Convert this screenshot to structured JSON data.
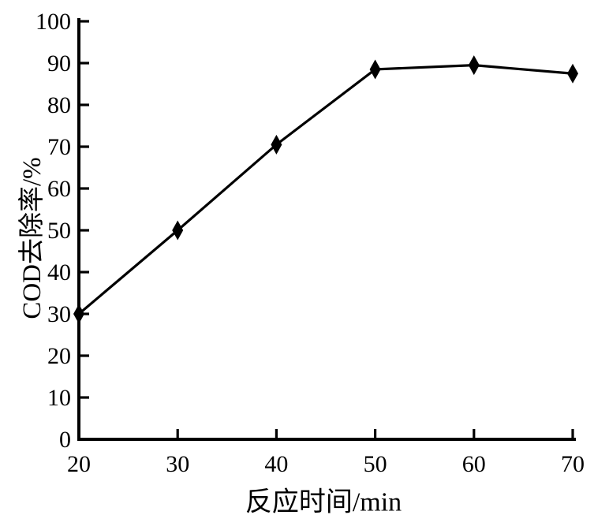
{
  "figure": {
    "background": "#ffffff",
    "axis_color": "#000000"
  },
  "chart_data": {
    "type": "line",
    "title": "",
    "xlabel": "反应时间/min",
    "ylabel": "COD去除率/%",
    "x": [
      20,
      30,
      40,
      50,
      60,
      70
    ],
    "series": [
      {
        "name": "COD去除率",
        "values": [
          30,
          50,
          70.5,
          88.5,
          89.5,
          87.5
        ],
        "color": "#000000",
        "marker": "filled-diamond"
      }
    ],
    "xlim": [
      20,
      70
    ],
    "ylim": [
      0,
      100
    ],
    "xticks": [
      20,
      30,
      40,
      50,
      60,
      70
    ],
    "yticks": [
      0,
      10,
      20,
      30,
      40,
      50,
      60,
      70,
      80,
      90,
      100
    ],
    "grid": false,
    "legend": "none",
    "tick_direction": "in"
  }
}
